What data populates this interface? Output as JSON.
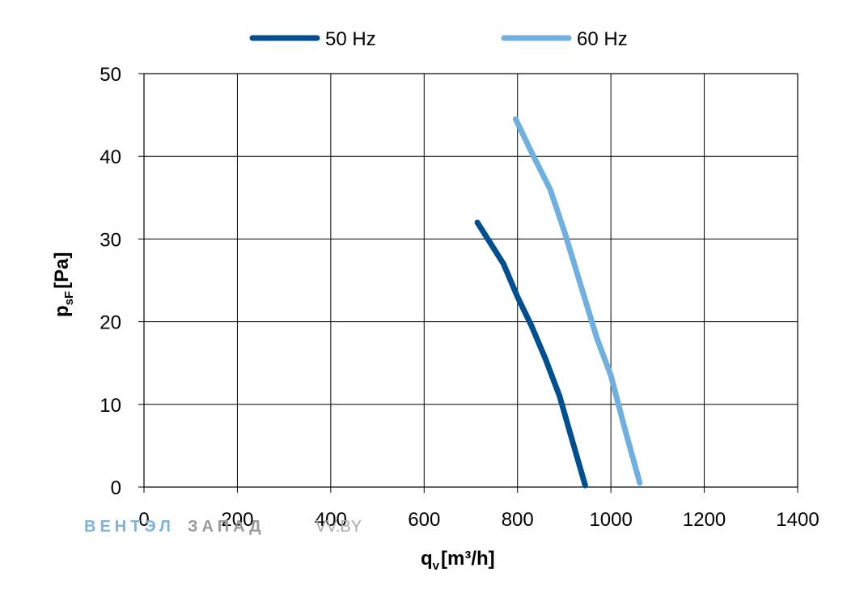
{
  "chart_data": {
    "type": "line",
    "title": "",
    "xlabel": {
      "main": "q",
      "sub": "v",
      "unit": "[m³/h]"
    },
    "ylabel": {
      "main": "p",
      "sub": "sF",
      "unit": "[Pa]"
    },
    "xlim": [
      0,
      1400
    ],
    "ylim": [
      0,
      50
    ],
    "xticks": [
      0,
      200,
      400,
      600,
      800,
      1000,
      1200,
      1400
    ],
    "yticks": [
      0,
      10,
      20,
      30,
      40,
      50
    ],
    "grid": true,
    "legend_position": "top",
    "series": [
      {
        "name": "50 Hz",
        "color": "#004f91",
        "points": [
          [
            714,
            32
          ],
          [
            770,
            27
          ],
          [
            800,
            23
          ],
          [
            830,
            19.5
          ],
          [
            860,
            15.5
          ],
          [
            890,
            11
          ],
          [
            918,
            5.5
          ],
          [
            945,
            0.2
          ]
        ]
      },
      {
        "name": "60 Hz",
        "color": "#6fb0e0",
        "points": [
          [
            796,
            44.5
          ],
          [
            830,
            40.5
          ],
          [
            870,
            36
          ],
          [
            900,
            31
          ],
          [
            935,
            24.5
          ],
          [
            970,
            18
          ],
          [
            1000,
            13.5
          ],
          [
            1030,
            7
          ],
          [
            1062,
            0.5
          ]
        ]
      }
    ]
  },
  "watermark": {
    "part1": "ВЕНТЭЛ",
    "part2": "ЗАПАД",
    "part3": "VV.BY"
  }
}
